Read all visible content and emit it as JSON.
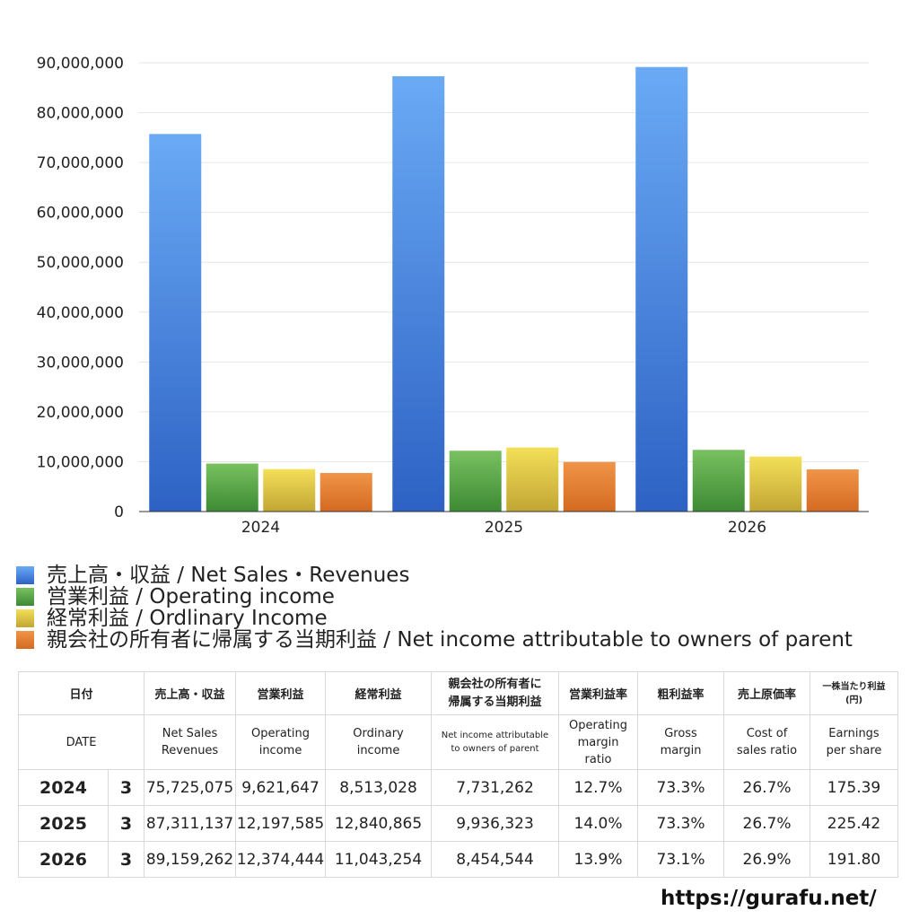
{
  "chart_data": {
    "type": "bar",
    "categories": [
      "2024",
      "2025",
      "2026"
    ],
    "ylim": [
      0,
      90000000
    ],
    "yticks": [
      "0",
      "10,000,000",
      "20,000,000",
      "30,000,000",
      "40,000,000",
      "50,000,000",
      "60,000,000",
      "70,000,000",
      "80,000,000",
      "90,000,000"
    ],
    "series": [
      {
        "name": "売上高・収益 / Net Sales・Revenues",
        "color": "#3f78d9",
        "values": [
          75725075,
          87311137,
          89159262
        ]
      },
      {
        "name": "営業利益 / Operating income",
        "color": "#4f9f3f",
        "values": [
          9621647,
          12197585,
          12374444
        ]
      },
      {
        "name": "経常利益 / Ordlinary Income",
        "color": "#d9c23c",
        "values": [
          8513028,
          12840865,
          11043254
        ]
      },
      {
        "name": "親会社の所有者に帰属する当期利益 / Net income attributable to owners of parent",
        "color": "#df7a2e",
        "values": [
          7731262,
          9936323,
          8454544
        ]
      }
    ],
    "grid": true,
    "legend_position": "bottom-left"
  },
  "table": {
    "header_jp": {
      "date": "日付",
      "sales": "売上高・収益",
      "op_income": "営業利益",
      "ord_income": "経常利益",
      "net_income_1": "親会社の所有者に",
      "net_income_2": "帰属する当期利益",
      "op_margin": "営業利益率",
      "gross_margin": "粗利益率",
      "cost_ratio": "売上原価率",
      "eps_1": "一株当たり利益",
      "eps_2": "(円)"
    },
    "header_en": {
      "date": "DATE",
      "sales_1": "Net Sales",
      "sales_2": "Revenues",
      "op_income_1": "Operating",
      "op_income_2": "income",
      "ord_income_1": "Ordinary",
      "ord_income_2": "income",
      "net_income_1": "Net income attributable",
      "net_income_2": "to owners of parent",
      "op_margin_1": "Operating",
      "op_margin_2": "margin",
      "op_margin_3": "ratio",
      "gross_margin_1": "Gross",
      "gross_margin_2": "margin",
      "cost_ratio_1": "Cost of",
      "cost_ratio_2": "sales ratio",
      "eps_1": "Earnings",
      "eps_2": "per share"
    },
    "rows": [
      {
        "year": "2024",
        "month": "3",
        "sales": "75,725,075",
        "op_income": "9,621,647",
        "ord_income": "8,513,028",
        "net_income": "7,731,262",
        "op_margin": "12.7%",
        "gross_margin": "73.3%",
        "cost_ratio": "26.7%",
        "eps": "175.39"
      },
      {
        "year": "2025",
        "month": "3",
        "sales": "87,311,137",
        "op_income": "12,197,585",
        "ord_income": "12,840,865",
        "net_income": "9,936,323",
        "op_margin": "14.0%",
        "gross_margin": "73.3%",
        "cost_ratio": "26.7%",
        "eps": "225.42"
      },
      {
        "year": "2026",
        "month": "3",
        "sales": "89,159,262",
        "op_income": "12,374,444",
        "ord_income": "11,043,254",
        "net_income": "8,454,544",
        "op_margin": "13.9%",
        "gross_margin": "73.1%",
        "cost_ratio": "26.9%",
        "eps": "191.80"
      }
    ]
  },
  "footer": {
    "site": "https://gurafu.net/"
  }
}
